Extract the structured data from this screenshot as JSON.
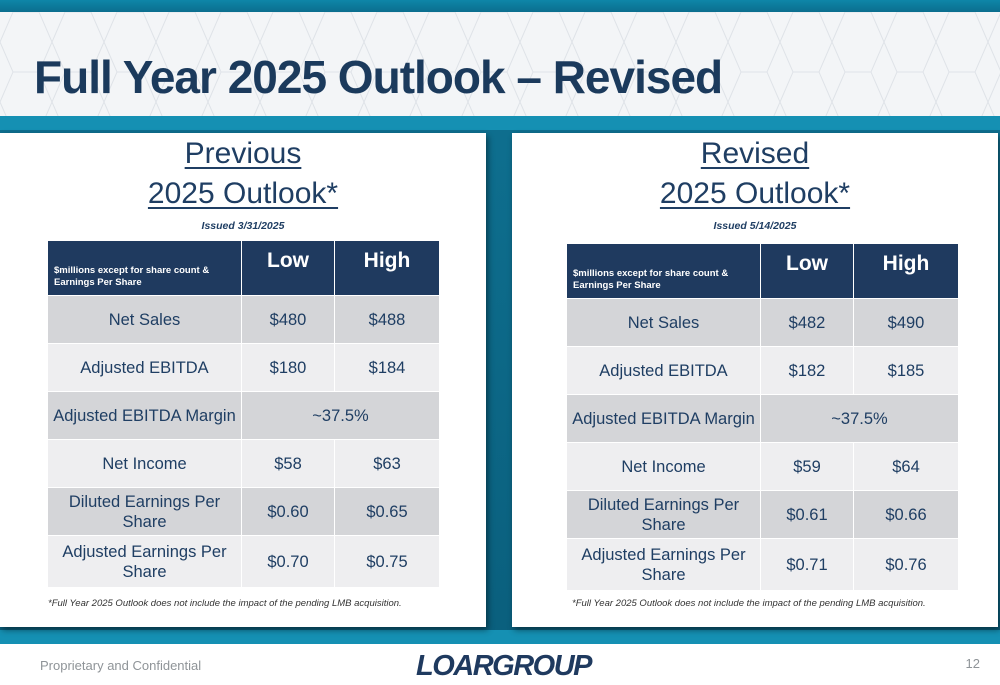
{
  "title": "Full Year 2025 Outlook – Revised",
  "panels": [
    {
      "heading_line1": "Previous",
      "heading_line2": "2025 Outlook*",
      "issued": "Issued 3/31/2025",
      "header": {
        "desc": "$millions except for share count & Earnings Per Share",
        "low": "Low",
        "high": "High"
      },
      "rows": [
        {
          "label": "Net Sales",
          "low": "$480",
          "high": "$488"
        },
        {
          "label": "Adjusted EBITDA",
          "low": "$180",
          "high": "$184"
        },
        {
          "label": "Adjusted EBITDA Margin",
          "range": "~37.5%"
        },
        {
          "label": "Net Income",
          "low": "$58",
          "high": "$63"
        },
        {
          "label": "Diluted Earnings Per Share",
          "low": "$0.60",
          "high": "$0.65"
        },
        {
          "label": "Adjusted Earnings Per Share",
          "low": "$0.70",
          "high": "$0.75"
        }
      ],
      "footnote": "*Full Year 2025 Outlook does not include the impact of the pending LMB acquisition."
    },
    {
      "heading_line1": "Revised",
      "heading_line2": "2025 Outlook*",
      "issued": "Issued 5/14/2025",
      "header": {
        "desc": "$millions except for share count & Earnings Per Share",
        "low": "Low",
        "high": "High"
      },
      "rows": [
        {
          "label": "Net Sales",
          "low": "$482",
          "high": "$490"
        },
        {
          "label": "Adjusted EBITDA",
          "low": "$182",
          "high": "$185"
        },
        {
          "label": "Adjusted EBITDA Margin",
          "range": "~37.5%"
        },
        {
          "label": "Net Income",
          "low": "$59",
          "high": "$64"
        },
        {
          "label": "Diluted Earnings Per Share",
          "low": "$0.61",
          "high": "$0.66"
        },
        {
          "label": "Adjusted Earnings Per Share",
          "low": "$0.71",
          "high": "$0.76"
        }
      ],
      "footnote": "*Full Year 2025 Outlook does not include the impact of the pending LMB acquisition."
    }
  ],
  "footer": {
    "label": "Proprietary and Confidential",
    "logo": "LOARGROUP",
    "page": "12"
  },
  "colors": {
    "title": "#1b3a5c",
    "band": "#0e6f8f",
    "table_header": "#1f3a5f",
    "row_shade": "#d4d5d8",
    "row_plain": "#eeeef0"
  }
}
